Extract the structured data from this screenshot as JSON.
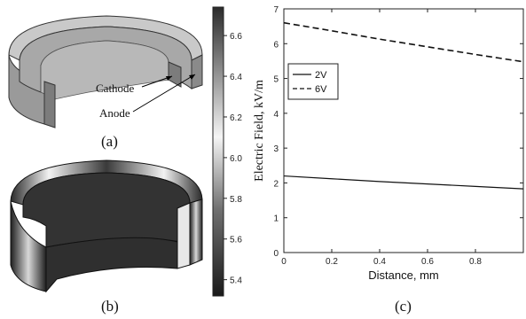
{
  "figure": {
    "panel_a": {
      "label": "(a)",
      "cathode_label": "Cathode",
      "anode_label": "Anode"
    },
    "panel_b": {
      "label": "(b)"
    },
    "panel_c": {
      "label": "(c)"
    },
    "colors": {
      "mesh_gray": "#9a9a9a",
      "dark_field": "#2d2d2d",
      "bright_field": "#f0f0f0"
    }
  },
  "colorbar": {
    "ticks": [
      "6.6",
      "6.4",
      "6.2",
      "6.0",
      "5.8",
      "5.6",
      "5.4"
    ],
    "range": [
      5.32,
      6.74
    ]
  },
  "chart_data": {
    "type": "line",
    "xlabel": "Distance, mm",
    "ylabel": "Electric Field, kV/m",
    "xlim": [
      0,
      1
    ],
    "ylim": [
      0,
      7
    ],
    "xticks": [
      "0",
      "0.2",
      "0.4",
      "0.6",
      "0.8"
    ],
    "yticks": [
      "0",
      "1",
      "2",
      "3",
      "4",
      "5",
      "6",
      "7"
    ],
    "grid": false,
    "legend_position": "upper-left",
    "series": [
      {
        "name": "2V",
        "x": [
          0,
          0.2,
          0.4,
          0.6,
          0.8,
          1.0
        ],
        "values": [
          2.2,
          2.12,
          2.04,
          1.97,
          1.9,
          1.83
        ]
      },
      {
        "name": "6V",
        "x": [
          0,
          0.2,
          0.4,
          0.6,
          0.8,
          1.0
        ],
        "values": [
          6.6,
          6.37,
          6.13,
          5.91,
          5.69,
          5.48
        ]
      }
    ]
  }
}
